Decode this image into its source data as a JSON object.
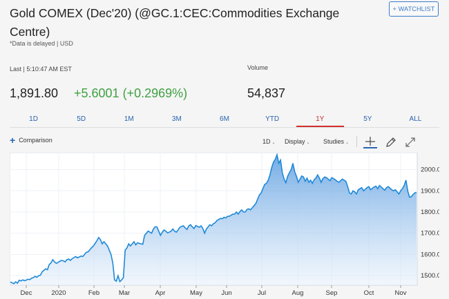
{
  "header": {
    "title": "Gold COMEX (Dec'20) (@GC.1:CEC:Commodities Exchange Centre)",
    "watchlist_label": "+ WATCHLIST",
    "delayed_note": "*Data is delayed | USD"
  },
  "quote": {
    "last_label": "Last | 5:10:47 AM EST",
    "price": "1,891.80",
    "change": "+5.6001 (+0.2969%)",
    "volume_label": "Volume",
    "volume": "54,837",
    "change_color": "#3fa142"
  },
  "range_tabs": [
    {
      "label": "1D"
    },
    {
      "label": "5D"
    },
    {
      "label": "1M"
    },
    {
      "label": "3M"
    },
    {
      "label": "6M"
    },
    {
      "label": "YTD"
    },
    {
      "label": "1Y",
      "active": true
    },
    {
      "label": "5Y"
    },
    {
      "label": "ALL"
    }
  ],
  "toolbar": {
    "comparison_label": "Comparison",
    "interval_label": "1D",
    "display_label": "Display",
    "studies_label": "Studies"
  },
  "chart_data": {
    "type": "area",
    "x_ticks": [
      "Dec",
      "2020",
      "Feb",
      "Mar",
      "Apr",
      "May",
      "Jun",
      "Jul",
      "Aug",
      "Sep",
      "Oct",
      "Nov"
    ],
    "y_ticks": [
      "1500.00",
      "1600.00",
      "1700.00",
      "1800.00",
      "1900.00",
      "2000.00"
    ],
    "ylim": [
      1455,
      2080
    ],
    "line_color": "#1e88d8",
    "series": [
      {
        "values": [
          1470,
          1466,
          1462,
          1471,
          1464,
          1478,
          1475,
          1480,
          1476,
          1479,
          1483,
          1481,
          1488,
          1490,
          1497,
          1492,
          1500,
          1502,
          1518,
          1525,
          1532,
          1528,
          1552,
          1560,
          1575,
          1565,
          1558,
          1562,
          1568,
          1572,
          1570,
          1565,
          1575,
          1578,
          1572,
          1580,
          1585,
          1590,
          1584,
          1588,
          1592,
          1590,
          1600,
          1610,
          1612,
          1622,
          1632,
          1640,
          1652,
          1665,
          1680,
          1670,
          1650,
          1660,
          1650,
          1640,
          1620,
          1600,
          1560,
          1480,
          1474,
          1500,
          1472,
          1480,
          1490,
          1620,
          1630,
          1650,
          1640,
          1650,
          1660,
          1645,
          1655,
          1652,
          1650,
          1648,
          1690,
          1700,
          1710,
          1705,
          1700,
          1720,
          1730,
          1730,
          1710,
          1690,
          1705,
          1715,
          1710,
          1702,
          1705,
          1710,
          1720,
          1710,
          1705,
          1716,
          1728,
          1732,
          1735,
          1725,
          1718,
          1734,
          1740,
          1730,
          1722,
          1736,
          1732,
          1728,
          1735,
          1722,
          1700,
          1720,
          1730,
          1740,
          1735,
          1745,
          1750,
          1760,
          1765,
          1770,
          1768,
          1775,
          1772,
          1780,
          1780,
          1785,
          1790,
          1790,
          1800,
          1790,
          1802,
          1810,
          1800,
          1800,
          1812,
          1815,
          1810,
          1820,
          1830,
          1840,
          1860,
          1880,
          1890,
          1910,
          1930,
          1935,
          1950,
          1975,
          2010,
          2035,
          2048,
          2070,
          2030,
          2045,
          1985,
          1955,
          1938,
          1968,
          1985,
          2000,
          2030,
          1990,
          1968,
          1940,
          1955,
          1970,
          1965,
          1945,
          1960,
          1940,
          1950,
          1935,
          1952,
          1960,
          1975,
          1960,
          1940,
          1958,
          1965,
          1962,
          1955,
          1948,
          1962,
          1958,
          1952,
          1945,
          1940,
          1948,
          1955,
          1950,
          1945,
          1920,
          1890,
          1885,
          1900,
          1895,
          1885,
          1905,
          1910,
          1915,
          1900,
          1908,
          1915,
          1920,
          1905,
          1912,
          1918,
          1922,
          1910,
          1925,
          1918,
          1910,
          1903,
          1915,
          1920,
          1912,
          1905,
          1900,
          1905,
          1895,
          1885,
          1900,
          1910,
          1925,
          1950,
          1900,
          1870,
          1872,
          1882,
          1890,
          1892
        ]
      }
    ]
  }
}
